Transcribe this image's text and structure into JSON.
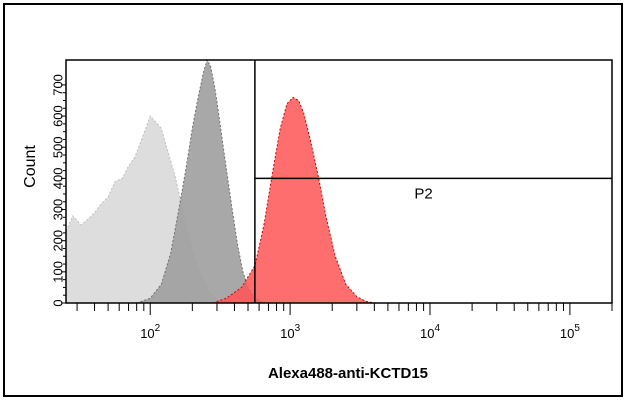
{
  "chart_data": {
    "type": "area",
    "title": "",
    "xlabel": "Alexa488-anti-KCTD15",
    "ylabel": "Count",
    "x_scale": "log",
    "xlim": [
      25,
      200000
    ],
    "ylim": [
      0,
      780
    ],
    "x_ticks": [
      {
        "base": "10",
        "exp": "2",
        "value": 100
      },
      {
        "base": "10",
        "exp": "3",
        "value": 1000
      },
      {
        "base": "10",
        "exp": "4",
        "value": 10000
      },
      {
        "base": "10",
        "exp": "5",
        "value": 100000
      }
    ],
    "y_ticks": [
      "0",
      "100",
      "200",
      "300",
      "400",
      "500",
      "600",
      "700"
    ],
    "y_tick_values": [
      0,
      100,
      200,
      300,
      400,
      500,
      600,
      700
    ],
    "gate": {
      "label": "P2",
      "x_min": 560,
      "x_max": 200000,
      "y_level": 400
    },
    "series": [
      {
        "color": "#d9d9d9",
        "stroke": "#bdbdbd",
        "x": [
          25,
          28,
          32,
          36,
          40,
          45,
          50,
          56,
          63,
          70,
          78,
          86,
          93,
          100,
          110,
          120,
          135,
          150,
          165,
          180,
          200,
          230,
          260,
          300,
          330
        ],
        "y": [
          230,
          280,
          250,
          270,
          290,
          320,
          340,
          390,
          400,
          440,
          470,
          520,
          560,
          600,
          580,
          560,
          480,
          410,
          330,
          250,
          170,
          90,
          40,
          10,
          0
        ]
      },
      {
        "color": "#9e9e9e",
        "stroke": "#6e6e6e",
        "x": [
          80,
          100,
          120,
          140,
          160,
          180,
          200,
          220,
          240,
          255,
          270,
          290,
          310,
          340,
          380,
          420,
          460,
          500,
          560,
          620,
          700
        ],
        "y": [
          0,
          15,
          60,
          160,
          300,
          430,
          560,
          660,
          740,
          780,
          760,
          690,
          600,
          470,
          320,
          190,
          100,
          50,
          15,
          5,
          0
        ]
      },
      {
        "color": "#ff5555",
        "stroke": "#d00000",
        "x": [
          280,
          350,
          450,
          560,
          650,
          750,
          850,
          950,
          1050,
          1150,
          1250,
          1400,
          1600,
          1800,
          2100,
          2500,
          3000,
          3500,
          4000
        ],
        "y": [
          0,
          15,
          50,
          120,
          250,
          420,
          560,
          640,
          660,
          650,
          610,
          520,
          400,
          280,
          150,
          60,
          20,
          5,
          0
        ]
      }
    ]
  }
}
